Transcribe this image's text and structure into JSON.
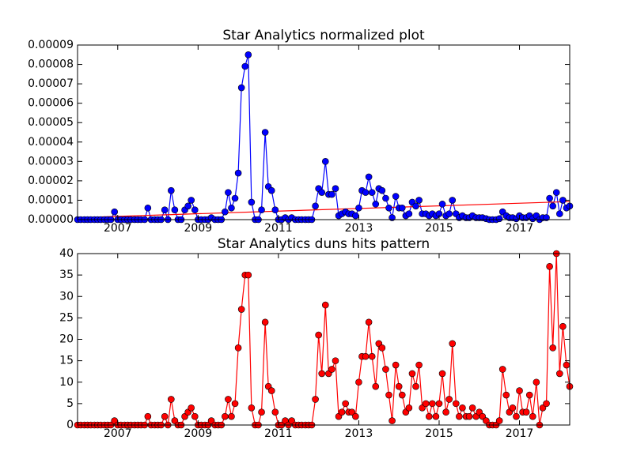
{
  "chart_data": [
    {
      "type": "line",
      "title": "Star Analytics normalized plot",
      "x": [
        2006,
        2006.08,
        2006.17,
        2006.25,
        2006.33,
        2006.42,
        2006.5,
        2006.58,
        2006.67,
        2006.75,
        2006.83,
        2006.92,
        2007,
        2007.08,
        2007.17,
        2007.25,
        2007.33,
        2007.42,
        2007.5,
        2007.58,
        2007.67,
        2007.75,
        2007.83,
        2007.92,
        2008,
        2008.08,
        2008.17,
        2008.25,
        2008.33,
        2008.42,
        2008.5,
        2008.58,
        2008.67,
        2008.75,
        2008.83,
        2008.92,
        2009,
        2009.08,
        2009.17,
        2009.25,
        2009.33,
        2009.42,
        2009.5,
        2009.58,
        2009.67,
        2009.75,
        2009.83,
        2009.92,
        2010,
        2010.08,
        2010.17,
        2010.25,
        2010.33,
        2010.42,
        2010.5,
        2010.58,
        2010.67,
        2010.75,
        2010.83,
        2010.92,
        2011,
        2011.08,
        2011.17,
        2011.25,
        2011.33,
        2011.42,
        2011.5,
        2011.58,
        2011.67,
        2011.75,
        2011.83,
        2011.92,
        2012,
        2012.08,
        2012.17,
        2012.25,
        2012.33,
        2012.42,
        2012.5,
        2012.58,
        2012.67,
        2012.75,
        2012.83,
        2012.92,
        2013,
        2013.08,
        2013.17,
        2013.25,
        2013.33,
        2013.42,
        2013.5,
        2013.58,
        2013.67,
        2013.75,
        2013.83,
        2013.92,
        2014,
        2014.08,
        2014.17,
        2014.25,
        2014.33,
        2014.42,
        2014.5,
        2014.58,
        2014.67,
        2014.75,
        2014.83,
        2014.92,
        2015,
        2015.08,
        2015.17,
        2015.25,
        2015.33,
        2015.42,
        2015.5,
        2015.58,
        2015.67,
        2015.75,
        2015.83,
        2015.92,
        2016,
        2016.08,
        2016.17,
        2016.25,
        2016.33,
        2016.42,
        2016.5,
        2016.58,
        2016.67,
        2016.75,
        2016.83,
        2016.92,
        2017,
        2017.08,
        2017.17,
        2017.25,
        2017.33,
        2017.42,
        2017.5,
        2017.58,
        2017.67,
        2017.75,
        2017.83,
        2017.92,
        2018,
        2018.08,
        2018.17,
        2018.25
      ],
      "series": [
        {
          "color": "#0000ff",
          "marker": true,
          "values": [
            0,
            0,
            0,
            0,
            0,
            0,
            0,
            0,
            0,
            0,
            0,
            4e-06,
            0,
            0,
            0,
            0,
            0,
            0,
            0,
            0,
            0,
            6e-06,
            0,
            0,
            0,
            0,
            5e-06,
            0,
            1.5e-05,
            5e-06,
            0,
            0,
            5e-06,
            7e-06,
            1e-05,
            5e-06,
            0,
            0,
            0,
            0,
            1e-06,
            0,
            0,
            0,
            4e-06,
            1.4e-05,
            6e-06,
            1.1e-05,
            2.4e-05,
            6.8e-05,
            7.9e-05,
            8.5e-05,
            9e-06,
            0,
            0,
            5e-06,
            4.5e-05,
            1.7e-05,
            1.5e-05,
            5e-06,
            0,
            0,
            1e-06,
            0,
            1e-06,
            0,
            0,
            0,
            0,
            0,
            0,
            7e-06,
            1.6e-05,
            1.4e-05,
            3e-05,
            1.3e-05,
            1.3e-05,
            1.6e-05,
            2e-06,
            3e-06,
            4e-06,
            3e-06,
            3e-06,
            2e-06,
            6e-06,
            1.5e-05,
            1.4e-05,
            2.2e-05,
            1.4e-05,
            8e-06,
            1.6e-05,
            1.5e-05,
            1.1e-05,
            6e-06,
            1e-06,
            1.2e-05,
            6e-06,
            6e-06,
            2e-06,
            3e-06,
            9e-06,
            7e-06,
            1e-05,
            3e-06,
            3e-06,
            2e-06,
            3e-06,
            2e-06,
            3e-06,
            8e-06,
            2e-06,
            3e-06,
            1e-05,
            3e-06,
            1e-06,
            2e-06,
            1e-06,
            1e-06,
            2e-06,
            1e-06,
            1e-06,
            1e-06,
            5e-07,
            0,
            0,
            0,
            5e-07,
            4e-06,
            2e-06,
            1e-06,
            1e-06,
            5e-07,
            2e-06,
            1e-06,
            1e-06,
            2e-06,
            5e-07,
            2e-06,
            0,
            1e-06,
            1e-06,
            1.1e-05,
            7e-06,
            1.4e-05,
            3e-06,
            1e-05,
            6e-06,
            7e-06
          ]
        },
        {
          "color": "#ff0000",
          "marker": false,
          "x": [
            2006,
            2018.25
          ],
          "values": [
            1e-06,
            9.3e-06
          ]
        }
      ],
      "xlim": [
        2006,
        2018.25
      ],
      "ylim": [
        0,
        9e-05
      ],
      "xticks": [
        2007,
        2009,
        2011,
        2013,
        2015,
        2017
      ],
      "yticks": [
        {
          "value": 0,
          "label": "0.00000"
        },
        {
          "value": 1e-05,
          "label": "0.00001"
        },
        {
          "value": 2e-05,
          "label": "0.00002"
        },
        {
          "value": 3e-05,
          "label": "0.00003"
        },
        {
          "value": 4e-05,
          "label": "0.00004"
        },
        {
          "value": 5e-05,
          "label": "0.00005"
        },
        {
          "value": 6e-05,
          "label": "0.00006"
        },
        {
          "value": 7e-05,
          "label": "0.00007"
        },
        {
          "value": 8e-05,
          "label": "0.00008"
        },
        {
          "value": 9e-05,
          "label": "0.00009"
        }
      ]
    },
    {
      "type": "line",
      "title": "Star Analytics duns hits pattern",
      "x": [
        2006,
        2006.08,
        2006.17,
        2006.25,
        2006.33,
        2006.42,
        2006.5,
        2006.58,
        2006.67,
        2006.75,
        2006.83,
        2006.92,
        2007,
        2007.08,
        2007.17,
        2007.25,
        2007.33,
        2007.42,
        2007.5,
        2007.58,
        2007.67,
        2007.75,
        2007.83,
        2007.92,
        2008,
        2008.08,
        2008.17,
        2008.25,
        2008.33,
        2008.42,
        2008.5,
        2008.58,
        2008.67,
        2008.75,
        2008.83,
        2008.92,
        2009,
        2009.08,
        2009.17,
        2009.25,
        2009.33,
        2009.42,
        2009.5,
        2009.58,
        2009.67,
        2009.75,
        2009.83,
        2009.92,
        2010,
        2010.08,
        2010.17,
        2010.25,
        2010.33,
        2010.42,
        2010.5,
        2010.58,
        2010.67,
        2010.75,
        2010.83,
        2010.92,
        2011,
        2011.08,
        2011.17,
        2011.25,
        2011.33,
        2011.42,
        2011.5,
        2011.58,
        2011.67,
        2011.75,
        2011.83,
        2011.92,
        2012,
        2012.08,
        2012.17,
        2012.25,
        2012.33,
        2012.42,
        2012.5,
        2012.58,
        2012.67,
        2012.75,
        2012.83,
        2012.92,
        2013,
        2013.08,
        2013.17,
        2013.25,
        2013.33,
        2013.42,
        2013.5,
        2013.58,
        2013.67,
        2013.75,
        2013.83,
        2013.92,
        2014,
        2014.08,
        2014.17,
        2014.25,
        2014.33,
        2014.42,
        2014.5,
        2014.58,
        2014.67,
        2014.75,
        2014.83,
        2014.92,
        2015,
        2015.08,
        2015.17,
        2015.25,
        2015.33,
        2015.42,
        2015.5,
        2015.58,
        2015.67,
        2015.75,
        2015.83,
        2015.92,
        2016,
        2016.08,
        2016.17,
        2016.25,
        2016.33,
        2016.42,
        2016.5,
        2016.58,
        2016.67,
        2016.75,
        2016.83,
        2016.92,
        2017,
        2017.08,
        2017.17,
        2017.25,
        2017.33,
        2017.42,
        2017.5,
        2017.58,
        2017.67,
        2017.75,
        2017.83,
        2017.92,
        2018,
        2018.08,
        2018.17,
        2018.25
      ],
      "series": [
        {
          "color": "#ff0000",
          "marker": true,
          "values": [
            0,
            0,
            0,
            0,
            0,
            0,
            0,
            0,
            0,
            0,
            0,
            1,
            0,
            0,
            0,
            0,
            0,
            0,
            0,
            0,
            0,
            2,
            0,
            0,
            0,
            0,
            2,
            0,
            6,
            1,
            0,
            0,
            2,
            3,
            4,
            2,
            0,
            0,
            0,
            0,
            1,
            0,
            0,
            0,
            2,
            6,
            2,
            5,
            18,
            27,
            35,
            35,
            4,
            0,
            0,
            3,
            24,
            9,
            8,
            3,
            0,
            0,
            1,
            0,
            1,
            0,
            0,
            0,
            0,
            0,
            0,
            6,
            21,
            12,
            28,
            12,
            13,
            15,
            2,
            3,
            5,
            3,
            3,
            2,
            10,
            16,
            16,
            24,
            16,
            9,
            19,
            18,
            13,
            7,
            1,
            14,
            9,
            7,
            3,
            4,
            12,
            9,
            14,
            4,
            5,
            2,
            5,
            2,
            5,
            12,
            3,
            6,
            19,
            5,
            2,
            4,
            2,
            2,
            4,
            2,
            3,
            2,
            1,
            0,
            0,
            0,
            1,
            13,
            7,
            3,
            4,
            2,
            8,
            3,
            3,
            7,
            2,
            10,
            0,
            4,
            5,
            37,
            18,
            40,
            12,
            23,
            14,
            9
          ]
        }
      ],
      "xlim": [
        2006,
        2018.25
      ],
      "ylim": [
        0,
        40
      ],
      "xticks": [
        2007,
        2009,
        2011,
        2013,
        2015,
        2017
      ],
      "yticks": [
        0,
        5,
        10,
        15,
        20,
        25,
        30,
        35,
        40
      ]
    }
  ]
}
